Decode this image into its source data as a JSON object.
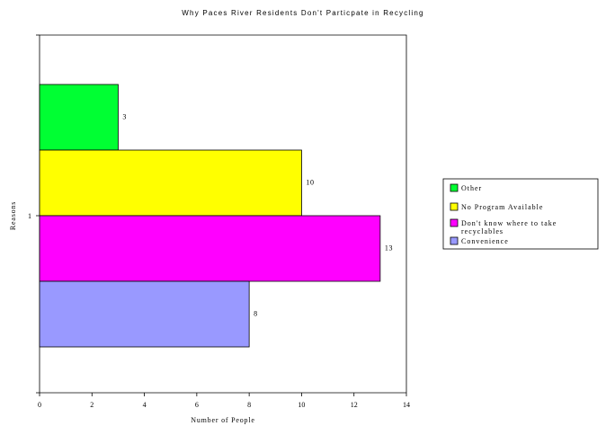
{
  "chart_data": {
    "type": "bar",
    "orientation": "horizontal",
    "title": "Why Paces River Residents Don't Particpate in Recycling",
    "xlabel": "Number of People",
    "ylabel": "Reasons",
    "categories": [
      "1"
    ],
    "xlim": [
      0,
      14
    ],
    "x_ticks": [
      "0",
      "2",
      "4",
      "6",
      "8",
      "10",
      "12",
      "14"
    ],
    "grid": false,
    "legend_position": "right",
    "series": [
      {
        "name": "Other",
        "values": [
          3
        ],
        "color": "#00ff33"
      },
      {
        "name": "No Program Available",
        "values": [
          10
        ],
        "color": "#ffff00"
      },
      {
        "name": "Don't know where to take recyclables",
        "values": [
          13
        ],
        "color": "#ff00ff"
      },
      {
        "name": "Convenience",
        "values": [
          8
        ],
        "color": "#9999ff"
      }
    ]
  }
}
